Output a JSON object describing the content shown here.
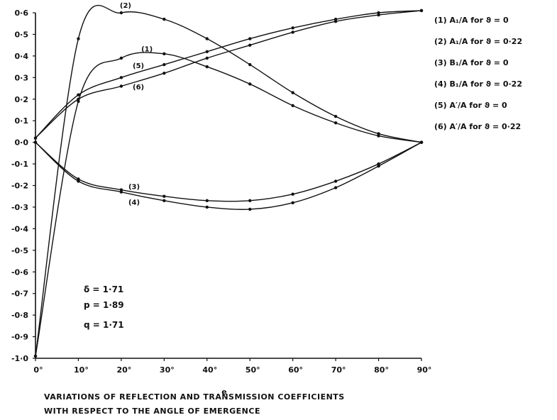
{
  "chart_data": {
    "type": "line",
    "xlabel": "e",
    "caption_lines": [
      "VARIATIONS OF REFLECTION AND TRANSMISSION COEFFICIENTS",
      "WITH RESPECT TO THE ANGLE OF EMERGENCE"
    ],
    "xlim": [
      0,
      90
    ],
    "ylim": [
      -1.0,
      0.6
    ],
    "x_ticks": [
      0,
      10,
      20,
      30,
      40,
      50,
      60,
      70,
      80,
      90
    ],
    "x_tick_labels": [
      "0°",
      "10°",
      "20°",
      "30°",
      "40°",
      "50°",
      "60°",
      "70°",
      "80°",
      "90°"
    ],
    "y_ticks": [
      0.6,
      0.5,
      0.4,
      0.3,
      0.2,
      0.1,
      0.0,
      -0.1,
      -0.2,
      -0.3,
      -0.4,
      -0.5,
      -0.6,
      -0.7,
      -0.8,
      -0.9,
      -1.0
    ],
    "y_tick_labels": [
      "0·6",
      "0·5",
      "0·4",
      "0·3",
      "0·2",
      "0·1",
      "0·0",
      "-0·1",
      "-0·2",
      "-0·3",
      "-0·4",
      "-0·5",
      "-0·6",
      "-0·7",
      "-0·8",
      "-0·9",
      "-1·0"
    ],
    "series": [
      {
        "name": "(1) A₁/A for ϑ = 0",
        "label": "(1)",
        "x": [
          0,
          10,
          20,
          30,
          40,
          50,
          60,
          70,
          80,
          90
        ],
        "y": [
          -0.99,
          0.19,
          0.39,
          0.41,
          0.35,
          0.27,
          0.17,
          0.09,
          0.03,
          0.0
        ]
      },
      {
        "name": "(2) A₁/A for ϑ = 0·22",
        "label": "(2)",
        "x": [
          0,
          10,
          20,
          30,
          40,
          50,
          60,
          70,
          80,
          90
        ],
        "y": [
          -0.99,
          0.48,
          0.6,
          0.57,
          0.48,
          0.36,
          0.23,
          0.12,
          0.04,
          0.0
        ]
      },
      {
        "name": "(3) B₁/A for ϑ = 0",
        "label": "(3)",
        "x": [
          0,
          10,
          20,
          30,
          40,
          50,
          60,
          70,
          80,
          90
        ],
        "y": [
          0.0,
          -0.17,
          -0.22,
          -0.25,
          -0.27,
          -0.27,
          -0.24,
          -0.18,
          -0.1,
          0.0
        ]
      },
      {
        "name": "(4) B₁/A for ϑ = 0·22",
        "label": "(4)",
        "x": [
          0,
          10,
          20,
          30,
          40,
          50,
          60,
          70,
          80,
          90
        ],
        "y": [
          0.0,
          -0.18,
          -0.23,
          -0.27,
          -0.3,
          -0.31,
          -0.28,
          -0.21,
          -0.11,
          0.0
        ]
      },
      {
        "name": "(5) A′/A for ϑ = 0",
        "label": "(5)",
        "x": [
          0,
          10,
          20,
          30,
          40,
          50,
          60,
          70,
          80,
          90
        ],
        "y": [
          0.02,
          0.22,
          0.3,
          0.36,
          0.42,
          0.48,
          0.53,
          0.57,
          0.6,
          0.61
        ]
      },
      {
        "name": "(6) A′/A for ϑ = 0·22",
        "label": "(6)",
        "x": [
          0,
          10,
          20,
          30,
          40,
          50,
          60,
          70,
          80,
          90
        ],
        "y": [
          0.02,
          0.2,
          0.26,
          0.32,
          0.39,
          0.45,
          0.51,
          0.56,
          0.59,
          0.61
        ]
      }
    ],
    "parameters": [
      "δ = 1·71",
      "p = 1·89",
      "q = 1·71"
    ],
    "grid": false,
    "legend_position": "top-right",
    "line_color": "#111111"
  }
}
